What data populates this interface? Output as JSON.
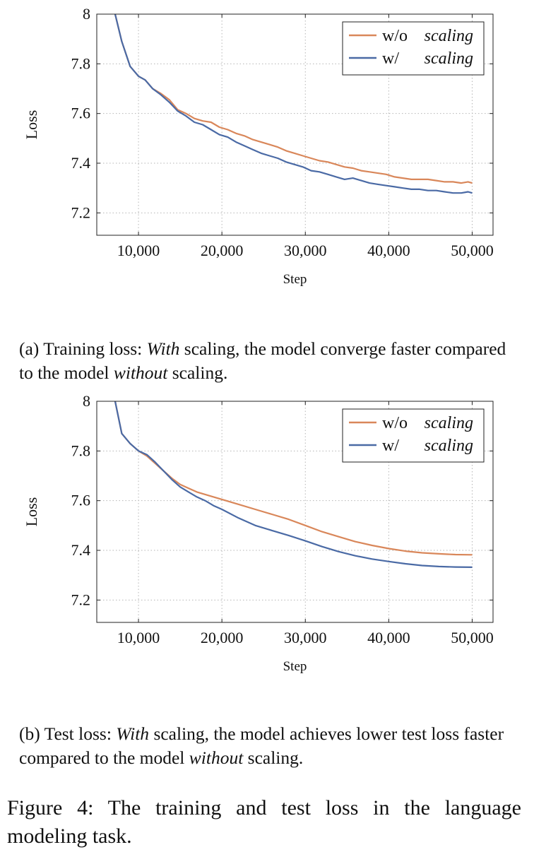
{
  "chart_data": [
    {
      "type": "line",
      "xlabel": "Step",
      "ylabel": "Loss",
      "xlim": [
        5000,
        52500
      ],
      "ylim": [
        7.11,
        8.0
      ],
      "xticks": [
        10000,
        20000,
        30000,
        40000,
        50000
      ],
      "xtick_labels": [
        "10,000",
        "20,000",
        "30,000",
        "40,000",
        "50,000"
      ],
      "yticks": [
        7.2,
        7.4,
        7.6,
        7.8,
        8.0
      ],
      "ytick_labels": [
        "7.2",
        "7.4",
        "7.6",
        "7.8",
        "8"
      ],
      "grid": true,
      "legend_position": "top-right",
      "legend": [
        {
          "prefix": "w/o",
          "emph": "scaling",
          "color": "#d9875a"
        },
        {
          "prefix": "w/",
          "emph": "scaling",
          "color": "#4a6aa5"
        }
      ],
      "series": [
        {
          "name": "w/o scaling",
          "color": "#d9875a",
          "x": [
            7200,
            8000,
            9000,
            10000,
            10800,
            11700,
            12700,
            13700,
            14700,
            15700,
            16700,
            17700,
            18700,
            19700,
            20700,
            21700,
            22700,
            23700,
            24700,
            25700,
            26700,
            27700,
            28700,
            29700,
            30700,
            31700,
            32700,
            33700,
            34700,
            35700,
            36700,
            37700,
            38700,
            39700,
            40700,
            41700,
            42700,
            43700,
            44700,
            45700,
            46700,
            47700,
            48700,
            49500,
            50000
          ],
          "values": [
            8.0,
            7.89,
            7.79,
            7.75,
            7.735,
            7.7,
            7.68,
            7.655,
            7.615,
            7.6,
            7.58,
            7.57,
            7.565,
            7.545,
            7.535,
            7.52,
            7.51,
            7.495,
            7.485,
            7.475,
            7.465,
            7.45,
            7.44,
            7.43,
            7.42,
            7.41,
            7.405,
            7.395,
            7.385,
            7.38,
            7.37,
            7.365,
            7.36,
            7.355,
            7.345,
            7.34,
            7.335,
            7.335,
            7.335,
            7.33,
            7.325,
            7.325,
            7.32,
            7.325,
            7.32
          ]
        },
        {
          "name": "w/ scaling",
          "color": "#4a6aa5",
          "x": [
            7200,
            8000,
            9000,
            10000,
            10800,
            11700,
            12700,
            13700,
            14700,
            15700,
            16700,
            17700,
            18700,
            19700,
            20700,
            21700,
            22700,
            23700,
            24700,
            25700,
            26700,
            27700,
            28700,
            29700,
            30700,
            31700,
            32700,
            33700,
            34700,
            35700,
            36700,
            37700,
            38700,
            39700,
            40700,
            41700,
            42700,
            43700,
            44700,
            45700,
            46700,
            47700,
            48700,
            49500,
            50000
          ],
          "values": [
            8.0,
            7.89,
            7.79,
            7.75,
            7.735,
            7.7,
            7.675,
            7.645,
            7.61,
            7.59,
            7.565,
            7.555,
            7.535,
            7.515,
            7.505,
            7.485,
            7.47,
            7.455,
            7.44,
            7.43,
            7.42,
            7.405,
            7.395,
            7.385,
            7.37,
            7.365,
            7.355,
            7.345,
            7.335,
            7.34,
            7.33,
            7.32,
            7.315,
            7.31,
            7.305,
            7.3,
            7.295,
            7.295,
            7.29,
            7.29,
            7.285,
            7.28,
            7.28,
            7.285,
            7.28
          ]
        }
      ]
    },
    {
      "type": "line",
      "xlabel": "Step",
      "ylabel": "Loss",
      "xlim": [
        5000,
        52500
      ],
      "ylim": [
        7.11,
        8.0
      ],
      "xticks": [
        10000,
        20000,
        30000,
        40000,
        50000
      ],
      "xtick_labels": [
        "10,000",
        "20,000",
        "30,000",
        "40,000",
        "50,000"
      ],
      "yticks": [
        7.2,
        7.4,
        7.6,
        7.8,
        8.0
      ],
      "ytick_labels": [
        "7.2",
        "7.4",
        "7.6",
        "7.8",
        "8"
      ],
      "grid": true,
      "legend_position": "top-right",
      "legend": [
        {
          "prefix": "w/o",
          "emph": "scaling",
          "color": "#d9875a"
        },
        {
          "prefix": "w/",
          "emph": "scaling",
          "color": "#4a6aa5"
        }
      ],
      "series": [
        {
          "name": "w/o scaling",
          "color": "#d9875a",
          "x": [
            7200,
            8000,
            9000,
            10000,
            11000,
            12000,
            13000,
            14000,
            15000,
            16000,
            17000,
            18000,
            19000,
            20000,
            22000,
            24000,
            26000,
            28000,
            30000,
            32000,
            34000,
            36000,
            38000,
            40000,
            42000,
            44000,
            46000,
            48000,
            50000
          ],
          "values": [
            8.0,
            7.87,
            7.83,
            7.8,
            7.78,
            7.75,
            7.72,
            7.69,
            7.665,
            7.65,
            7.635,
            7.625,
            7.615,
            7.605,
            7.585,
            7.565,
            7.545,
            7.525,
            7.5,
            7.475,
            7.455,
            7.435,
            7.42,
            7.407,
            7.397,
            7.39,
            7.386,
            7.383,
            7.382
          ]
        },
        {
          "name": "w/ scaling",
          "color": "#4a6aa5",
          "x": [
            7200,
            8000,
            9000,
            10000,
            11000,
            12000,
            13000,
            14000,
            15000,
            16000,
            17000,
            18000,
            19000,
            20000,
            22000,
            24000,
            26000,
            28000,
            30000,
            32000,
            34000,
            36000,
            38000,
            40000,
            42000,
            44000,
            46000,
            48000,
            50000
          ],
          "values": [
            8.0,
            7.87,
            7.83,
            7.8,
            7.785,
            7.755,
            7.72,
            7.685,
            7.655,
            7.635,
            7.615,
            7.6,
            7.58,
            7.565,
            7.53,
            7.5,
            7.48,
            7.46,
            7.438,
            7.415,
            7.395,
            7.378,
            7.365,
            7.355,
            7.346,
            7.339,
            7.335,
            7.333,
            7.332
          ]
        }
      ]
    }
  ],
  "captions": {
    "a": {
      "prefix": "(a) Training loss: ",
      "em1": "With",
      "mid": " scaling, the model converge faster compared to the model ",
      "em2": "without",
      "suffix": " scaling."
    },
    "b": {
      "prefix": "(b) Test loss: ",
      "em1": "With",
      "mid": " scaling, the model achieves lower test loss faster compared to the model ",
      "em2": "without",
      "suffix": " scaling."
    }
  },
  "figure_caption": "Figure 4:  The training and test loss in the language modeling task."
}
